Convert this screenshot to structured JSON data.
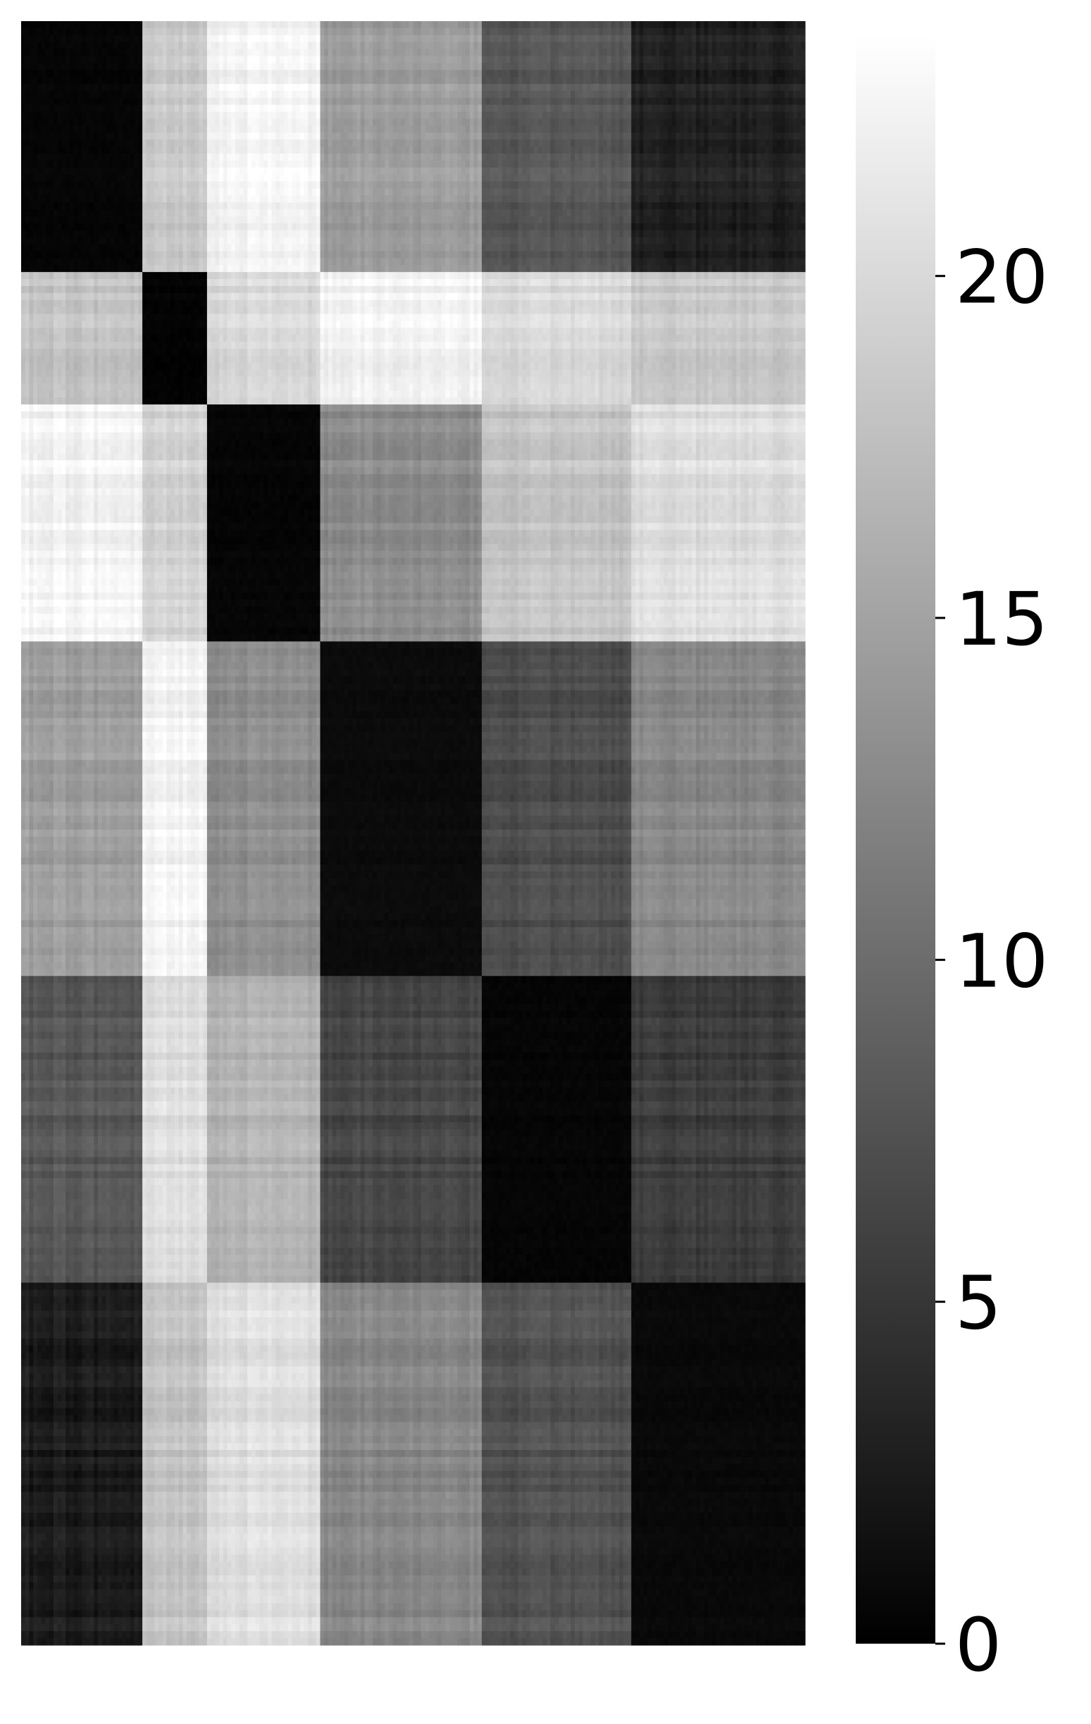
{
  "chart_data": {
    "type": "heatmap",
    "colormap": "grayscale",
    "colorbar": {
      "vmin": 0,
      "vmax": 23.5,
      "ticks": [
        0,
        5,
        10,
        15,
        20
      ],
      "tick_labels": [
        "0",
        "5",
        "10",
        "15",
        "20"
      ]
    },
    "row_groups": [
      {
        "id": "g1",
        "size": 36
      },
      {
        "id": "g2",
        "size": 19
      },
      {
        "id": "g3",
        "size": 34
      },
      {
        "id": "g4",
        "size": 48
      },
      {
        "id": "g5",
        "size": 44
      },
      {
        "id": "g6",
        "size": 52
      }
    ],
    "col_groups": [
      {
        "id": "g1",
        "size": 30
      },
      {
        "id": "g2",
        "size": 16
      },
      {
        "id": "g3",
        "size": 28
      },
      {
        "id": "g4",
        "size": 40
      },
      {
        "id": "g5",
        "size": 37
      },
      {
        "id": "g6",
        "size": 43
      }
    ],
    "block_values": [
      [
        0.5,
        18.5,
        22.5,
        14.5,
        8.0,
        3.0
      ],
      [
        18.0,
        0.3,
        20.0,
        22.5,
        20.0,
        18.5
      ],
      [
        22.5,
        19.5,
        0.5,
        13.0,
        18.0,
        20.5
      ],
      [
        14.5,
        22.5,
        13.0,
        1.0,
        7.0,
        12.5
      ],
      [
        8.0,
        20.5,
        16.5,
        6.5,
        0.5,
        5.5
      ],
      [
        2.5,
        18.0,
        20.5,
        12.5,
        7.5,
        0.8
      ]
    ],
    "title": "",
    "xlabel": "",
    "ylabel": "",
    "grid": false,
    "legend": "colorbar-right"
  }
}
